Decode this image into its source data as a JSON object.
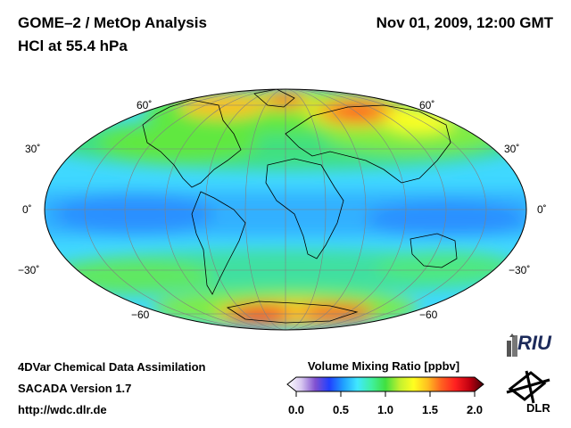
{
  "header": {
    "title_line1": "GOME–2 / MetOp Analysis",
    "title_line2": "HCl at 55.4 hPa",
    "datetime": "Nov 01, 2009, 12:00 GMT"
  },
  "map": {
    "projection": "Mollweide",
    "lat_labels_left": [
      "60˚",
      "30˚",
      "0˚",
      "−30˚",
      "−60"
    ],
    "lat_labels_right": [
      "60˚",
      "30˚",
      "0˚",
      "−30˚",
      "−60"
    ]
  },
  "colorbar": {
    "title": "Volume Mixing Ratio [ppbv]",
    "ticks": [
      "0.0",
      "0.5",
      "1.0",
      "1.5",
      "2.0"
    ],
    "range": [
      0.0,
      2.0
    ],
    "colors": [
      "#ffffff",
      "#d8c8f0",
      "#8050d0",
      "#2040ff",
      "#20a0ff",
      "#40e8ff",
      "#40f0a0",
      "#40e040",
      "#c0f030",
      "#ffff20",
      "#ffc020",
      "#ff6020",
      "#ff2020",
      "#c00010",
      "#400008"
    ]
  },
  "footer": {
    "line1": "4DVar Chemical Data Assimilation",
    "line2": "SACADA Version 1.7",
    "line3": "http://wdc.dlr.de"
  },
  "logos": {
    "riu": "RIU",
    "dlr": "DLR"
  }
}
